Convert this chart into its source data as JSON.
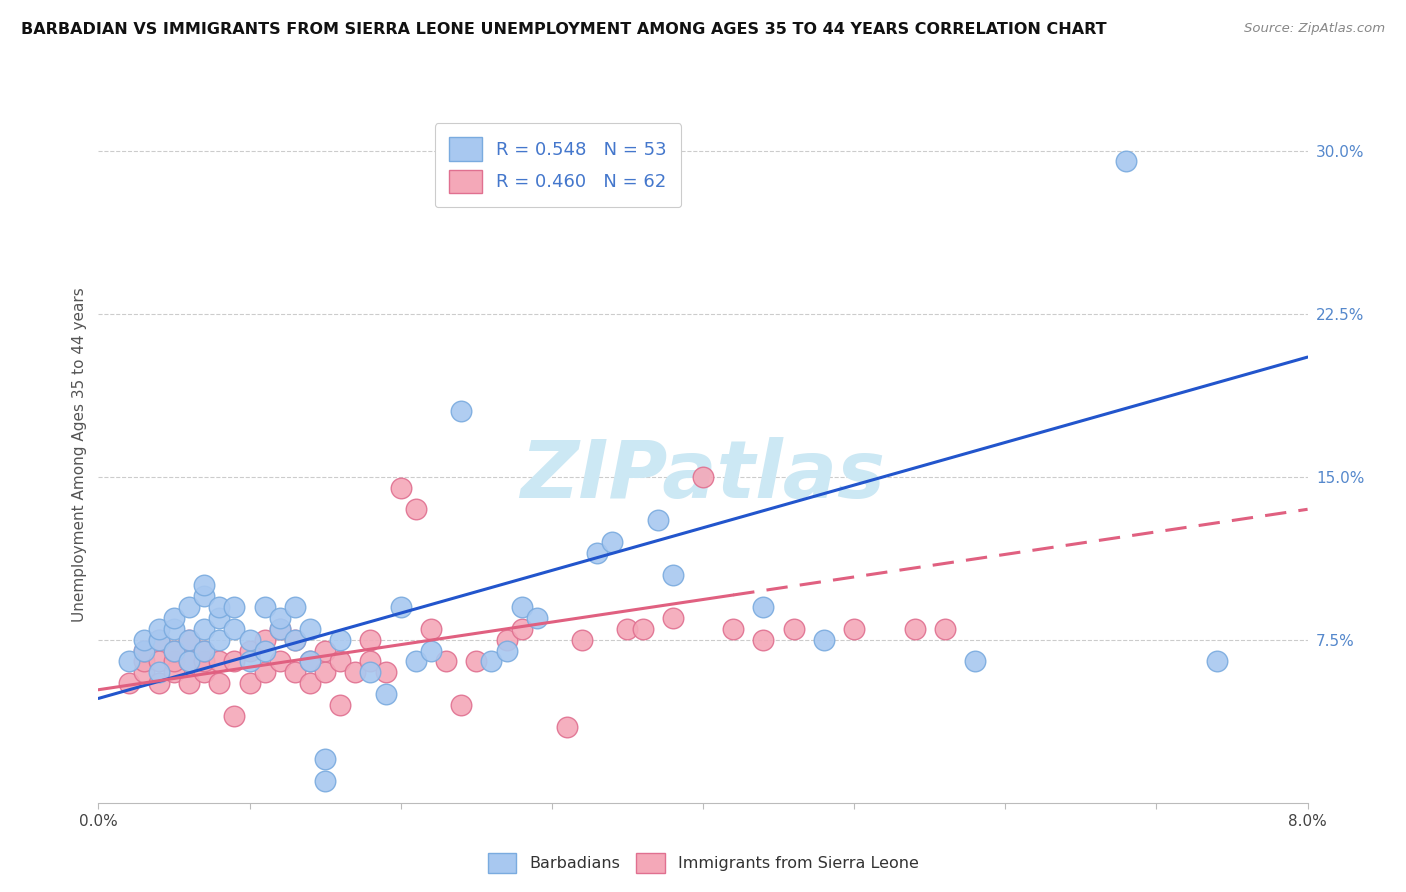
{
  "title": "BARBADIAN VS IMMIGRANTS FROM SIERRA LEONE UNEMPLOYMENT AMONG AGES 35 TO 44 YEARS CORRELATION CHART",
  "source": "Source: ZipAtlas.com",
  "ylabel": "Unemployment Among Ages 35 to 44 years",
  "xlim": [
    0.0,
    0.08
  ],
  "ylim": [
    0.0,
    0.32
  ],
  "yticks": [
    0.075,
    0.15,
    0.225,
    0.3
  ],
  "ytick_labels": [
    "7.5%",
    "15.0%",
    "22.5%",
    "30.0%"
  ],
  "barbadians_color": "#a8c8f0",
  "sierraleone_color": "#f4a8b8",
  "barbadians_edge": "#7aabdf",
  "sierraleone_edge": "#e07090",
  "blue_line_color": "#2255cc",
  "pink_line_color": "#e06080",
  "watermark_color": "#cce8f4",
  "background_color": "#ffffff",
  "blue_scatter": [
    [
      0.002,
      0.065
    ],
    [
      0.003,
      0.07
    ],
    [
      0.003,
      0.075
    ],
    [
      0.004,
      0.06
    ],
    [
      0.004,
      0.075
    ],
    [
      0.004,
      0.08
    ],
    [
      0.005,
      0.07
    ],
    [
      0.005,
      0.08
    ],
    [
      0.005,
      0.085
    ],
    [
      0.006,
      0.065
    ],
    [
      0.006,
      0.075
    ],
    [
      0.006,
      0.09
    ],
    [
      0.007,
      0.07
    ],
    [
      0.007,
      0.08
    ],
    [
      0.007,
      0.095
    ],
    [
      0.007,
      0.1
    ],
    [
      0.008,
      0.075
    ],
    [
      0.008,
      0.085
    ],
    [
      0.008,
      0.09
    ],
    [
      0.009,
      0.08
    ],
    [
      0.009,
      0.09
    ],
    [
      0.01,
      0.065
    ],
    [
      0.01,
      0.075
    ],
    [
      0.011,
      0.07
    ],
    [
      0.011,
      0.09
    ],
    [
      0.012,
      0.08
    ],
    [
      0.012,
      0.085
    ],
    [
      0.013,
      0.075
    ],
    [
      0.013,
      0.09
    ],
    [
      0.014,
      0.065
    ],
    [
      0.014,
      0.08
    ],
    [
      0.015,
      0.01
    ],
    [
      0.015,
      0.02
    ],
    [
      0.016,
      0.075
    ],
    [
      0.018,
      0.06
    ],
    [
      0.019,
      0.05
    ],
    [
      0.02,
      0.09
    ],
    [
      0.021,
      0.065
    ],
    [
      0.022,
      0.07
    ],
    [
      0.024,
      0.18
    ],
    [
      0.026,
      0.065
    ],
    [
      0.027,
      0.07
    ],
    [
      0.028,
      0.09
    ],
    [
      0.029,
      0.085
    ],
    [
      0.033,
      0.115
    ],
    [
      0.034,
      0.12
    ],
    [
      0.037,
      0.13
    ],
    [
      0.038,
      0.105
    ],
    [
      0.044,
      0.09
    ],
    [
      0.048,
      0.075
    ],
    [
      0.058,
      0.065
    ],
    [
      0.068,
      0.295
    ],
    [
      0.074,
      0.065
    ]
  ],
  "sierraleone_scatter": [
    [
      0.002,
      0.055
    ],
    [
      0.003,
      0.06
    ],
    [
      0.003,
      0.065
    ],
    [
      0.003,
      0.07
    ],
    [
      0.004,
      0.055
    ],
    [
      0.004,
      0.065
    ],
    [
      0.004,
      0.075
    ],
    [
      0.005,
      0.06
    ],
    [
      0.005,
      0.065
    ],
    [
      0.005,
      0.07
    ],
    [
      0.006,
      0.055
    ],
    [
      0.006,
      0.065
    ],
    [
      0.006,
      0.075
    ],
    [
      0.007,
      0.06
    ],
    [
      0.007,
      0.065
    ],
    [
      0.007,
      0.07
    ],
    [
      0.008,
      0.055
    ],
    [
      0.008,
      0.065
    ],
    [
      0.009,
      0.04
    ],
    [
      0.009,
      0.065
    ],
    [
      0.01,
      0.055
    ],
    [
      0.01,
      0.07
    ],
    [
      0.011,
      0.06
    ],
    [
      0.011,
      0.075
    ],
    [
      0.012,
      0.065
    ],
    [
      0.012,
      0.08
    ],
    [
      0.013,
      0.06
    ],
    [
      0.013,
      0.075
    ],
    [
      0.014,
      0.055
    ],
    [
      0.014,
      0.065
    ],
    [
      0.015,
      0.06
    ],
    [
      0.015,
      0.07
    ],
    [
      0.016,
      0.045
    ],
    [
      0.016,
      0.065
    ],
    [
      0.017,
      0.06
    ],
    [
      0.018,
      0.065
    ],
    [
      0.018,
      0.075
    ],
    [
      0.019,
      0.06
    ],
    [
      0.02,
      0.145
    ],
    [
      0.021,
      0.135
    ],
    [
      0.022,
      0.08
    ],
    [
      0.023,
      0.065
    ],
    [
      0.024,
      0.045
    ],
    [
      0.025,
      0.065
    ],
    [
      0.027,
      0.075
    ],
    [
      0.028,
      0.08
    ],
    [
      0.031,
      0.035
    ],
    [
      0.032,
      0.075
    ],
    [
      0.035,
      0.08
    ],
    [
      0.036,
      0.08
    ],
    [
      0.038,
      0.085
    ],
    [
      0.04,
      0.15
    ],
    [
      0.042,
      0.08
    ],
    [
      0.044,
      0.075
    ],
    [
      0.046,
      0.08
    ],
    [
      0.05,
      0.08
    ],
    [
      0.054,
      0.08
    ],
    [
      0.056,
      0.08
    ]
  ],
  "blue_line": {
    "x0": 0.0,
    "y0": 0.048,
    "x1": 0.08,
    "y1": 0.205
  },
  "pink_line": {
    "x0": 0.0,
    "y0": 0.052,
    "x1": 0.08,
    "y1": 0.135
  },
  "pink_line_solid_end": 0.042
}
